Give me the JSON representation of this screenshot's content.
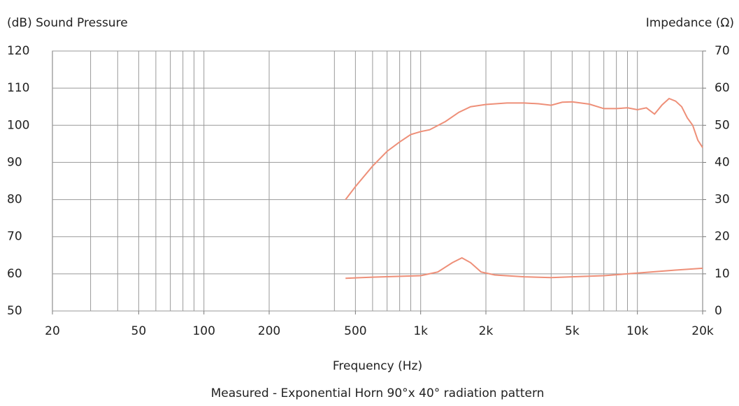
{
  "chart_data": {
    "type": "line",
    "ylabel": "(dB) Sound Pressure",
    "y2label": "Impedance (Ω)",
    "xlabel": "Frequency (Hz)",
    "caption": "Measured - Exponential Horn 90°x 40° radiation pattern",
    "xscale": "log",
    "xlim": [
      20,
      20000
    ],
    "xticks": [
      20,
      50,
      100,
      200,
      500,
      {
        "value": 1000,
        "label": "1k"
      },
      {
        "value": 2000,
        "label": "2k"
      },
      {
        "value": 5000,
        "label": "5k"
      },
      {
        "value": 10000,
        "label": "10k"
      },
      {
        "value": 20000,
        "label": "20k"
      }
    ],
    "xgrid": [
      30,
      40,
      50,
      60,
      70,
      80,
      90,
      100,
      200,
      400,
      500,
      600,
      700,
      800,
      900,
      1000,
      2000,
      3000,
      4000,
      5000,
      6000,
      7000,
      8000,
      9000,
      10000
    ],
    "ylim": [
      50,
      120
    ],
    "yticks": [
      50,
      60,
      70,
      80,
      90,
      100,
      110,
      120
    ],
    "y2lim": [
      0,
      70
    ],
    "y2ticks": [
      0,
      10,
      20,
      30,
      40,
      50,
      60,
      70
    ],
    "grid": true,
    "series": [
      {
        "name": "Sound Pressure",
        "color": "#ee8f78",
        "x": [
          450,
          500,
          600,
          700,
          800,
          900,
          1000,
          1100,
          1300,
          1500,
          1700,
          2000,
          2500,
          3000,
          3500,
          4000,
          4500,
          5000,
          6000,
          7000,
          8000,
          9000,
          10000,
          11000,
          12000,
          13000,
          14000,
          15000,
          16000,
          17000,
          18000,
          19000,
          20000
        ],
        "values": [
          80,
          83.5,
          89,
          93,
          95.5,
          97.5,
          98.3,
          98.8,
          101,
          103.5,
          105,
          105.6,
          106,
          106,
          105.8,
          105.4,
          106.2,
          106.3,
          105.7,
          104.5,
          104.5,
          104.7,
          104.2,
          104.7,
          103,
          105.5,
          107.2,
          106.5,
          105,
          102,
          100,
          96,
          94
        ]
      },
      {
        "name": "Impedance",
        "color": "#ee8f78",
        "axis": "y2",
        "x": [
          450,
          600,
          1000,
          1200,
          1400,
          1550,
          1700,
          1900,
          2200,
          3000,
          4000,
          5000,
          7000,
          10000,
          15000,
          20000
        ],
        "values": [
          8.8,
          9.1,
          9.5,
          10.5,
          13,
          14.3,
          13,
          10.5,
          9.7,
          9.2,
          9,
          9.2,
          9.5,
          10.2,
          11,
          11.5
        ]
      }
    ]
  }
}
